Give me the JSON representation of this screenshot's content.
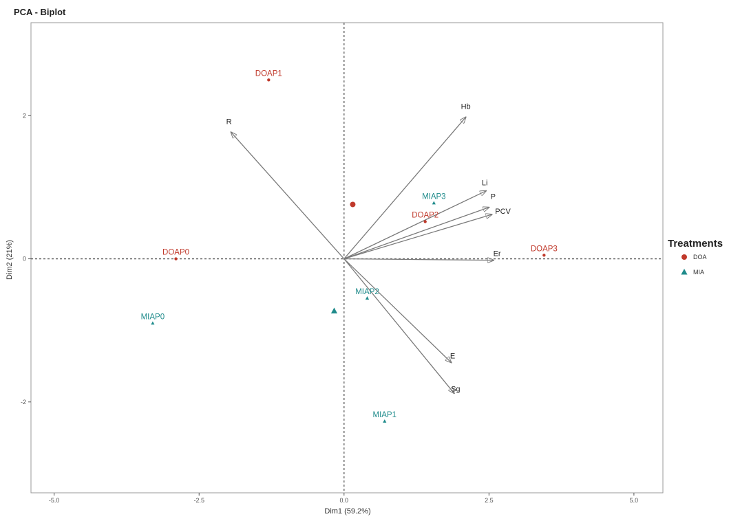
{
  "chart_data": {
    "type": "scatter",
    "title": "PCA - Biplot",
    "xlabel": "Dim1 (59.2%)",
    "ylabel": "Dim2 (21%)",
    "xlim": [
      -5.4,
      5.5
    ],
    "ylim": [
      -3.27,
      3.3
    ],
    "x_ticks": [
      -5.0,
      -2.5,
      0.0,
      2.5,
      5.0
    ],
    "x_tick_labels": [
      "-5.0",
      "-2.5",
      "0.0",
      "2.5",
      "5.0"
    ],
    "y_ticks": [
      -2,
      0,
      2
    ],
    "y_tick_labels": [
      "-2",
      "0",
      "2"
    ],
    "grid": false,
    "reference_lines": {
      "x": 0,
      "y": 0,
      "style": "dashed"
    },
    "legend": {
      "title": "Treatments",
      "placement": "right",
      "entries": [
        {
          "label": "DOA",
          "color": "#c0392b",
          "shape": "circle"
        },
        {
          "label": "MIA",
          "color": "#1f8b8b",
          "shape": "triangle"
        }
      ]
    },
    "colors": {
      "DOA": "#c0392b",
      "MIA": "#1f8b8b",
      "arrow": "#7a7a7a",
      "axis": "#333333"
    },
    "individuals": [
      {
        "label": "DOAP0",
        "group": "DOA",
        "x": -2.9,
        "y": 0.0
      },
      {
        "label": "DOAP1",
        "group": "DOA",
        "x": -1.3,
        "y": 2.5
      },
      {
        "label": "DOAP2",
        "group": "DOA",
        "x": 1.4,
        "y": 0.52
      },
      {
        "label": "DOAP3",
        "group": "DOA",
        "x": 3.45,
        "y": 0.05
      },
      {
        "label": "MIAP0",
        "group": "MIA",
        "x": -3.3,
        "y": -0.9
      },
      {
        "label": "MIAP1",
        "group": "MIA",
        "x": 0.7,
        "y": -2.27
      },
      {
        "label": "MIAP2",
        "group": "MIA",
        "x": 0.4,
        "y": -0.55
      },
      {
        "label": "MIAP3",
        "group": "MIA",
        "x": 1.55,
        "y": 0.78
      }
    ],
    "centroids": [
      {
        "group": "DOA",
        "x": 0.15,
        "y": 0.76
      },
      {
        "group": "MIA",
        "x": -0.17,
        "y": -0.73
      }
    ],
    "variables": [
      {
        "label": "R",
        "x": -1.95,
        "y": 1.77
      },
      {
        "label": "Hb",
        "x": 2.1,
        "y": 1.98
      },
      {
        "label": "Li",
        "x": 2.45,
        "y": 0.95
      },
      {
        "label": "P",
        "x": 2.5,
        "y": 0.72
      },
      {
        "label": "PCV",
        "x": 2.55,
        "y": 0.62
      },
      {
        "label": "Er",
        "x": 2.58,
        "y": -0.02
      },
      {
        "label": "E",
        "x": 1.85,
        "y": -1.45
      },
      {
        "label": "Sg",
        "x": 1.9,
        "y": -1.88
      }
    ]
  }
}
